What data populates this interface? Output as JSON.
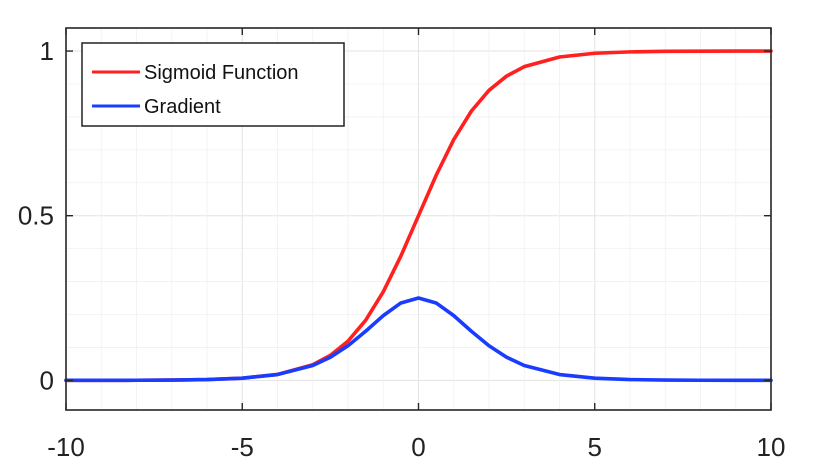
{
  "chart_data": {
    "type": "line",
    "title": "",
    "xlabel": "",
    "ylabel": "",
    "xlim": [
      -10,
      10
    ],
    "ylim": [
      -0.09,
      1.07
    ],
    "grid": true,
    "legend_position": "top-left",
    "x_ticks": [
      -10,
      -5,
      0,
      5,
      10
    ],
    "y_ticks": [
      0,
      0.5,
      1
    ],
    "x_tick_labels": [
      "-10",
      "-5",
      "0",
      "5",
      "10"
    ],
    "y_tick_labels": [
      "0",
      "0.5",
      "1"
    ],
    "x": [
      -10,
      -9,
      -8,
      -7,
      -6,
      -5,
      -4,
      -3,
      -2.5,
      -2,
      -1.5,
      -1,
      -0.5,
      0,
      0.5,
      1,
      1.5,
      2,
      2.5,
      3,
      4,
      5,
      6,
      7,
      8,
      9,
      10
    ],
    "series": [
      {
        "name": "Sigmoid Function",
        "color": "#ff2020",
        "values": [
          0.0,
          0.0001,
          0.0003,
          0.0009,
          0.0025,
          0.0067,
          0.018,
          0.0474,
          0.0759,
          0.1192,
          0.1824,
          0.2689,
          0.3775,
          0.5,
          0.6225,
          0.7311,
          0.8176,
          0.8808,
          0.9241,
          0.9526,
          0.982,
          0.9933,
          0.9975,
          0.9991,
          0.9997,
          0.9999,
          1.0
        ]
      },
      {
        "name": "Gradient",
        "color": "#1a3cff",
        "values": [
          0.0,
          0.0001,
          0.0003,
          0.0009,
          0.0025,
          0.0066,
          0.0177,
          0.0452,
          0.0701,
          0.105,
          0.1491,
          0.1966,
          0.235,
          0.25,
          0.235,
          0.1966,
          0.1491,
          0.105,
          0.0701,
          0.0452,
          0.0177,
          0.0066,
          0.0025,
          0.0009,
          0.0003,
          0.0001,
          0.0
        ]
      }
    ]
  }
}
